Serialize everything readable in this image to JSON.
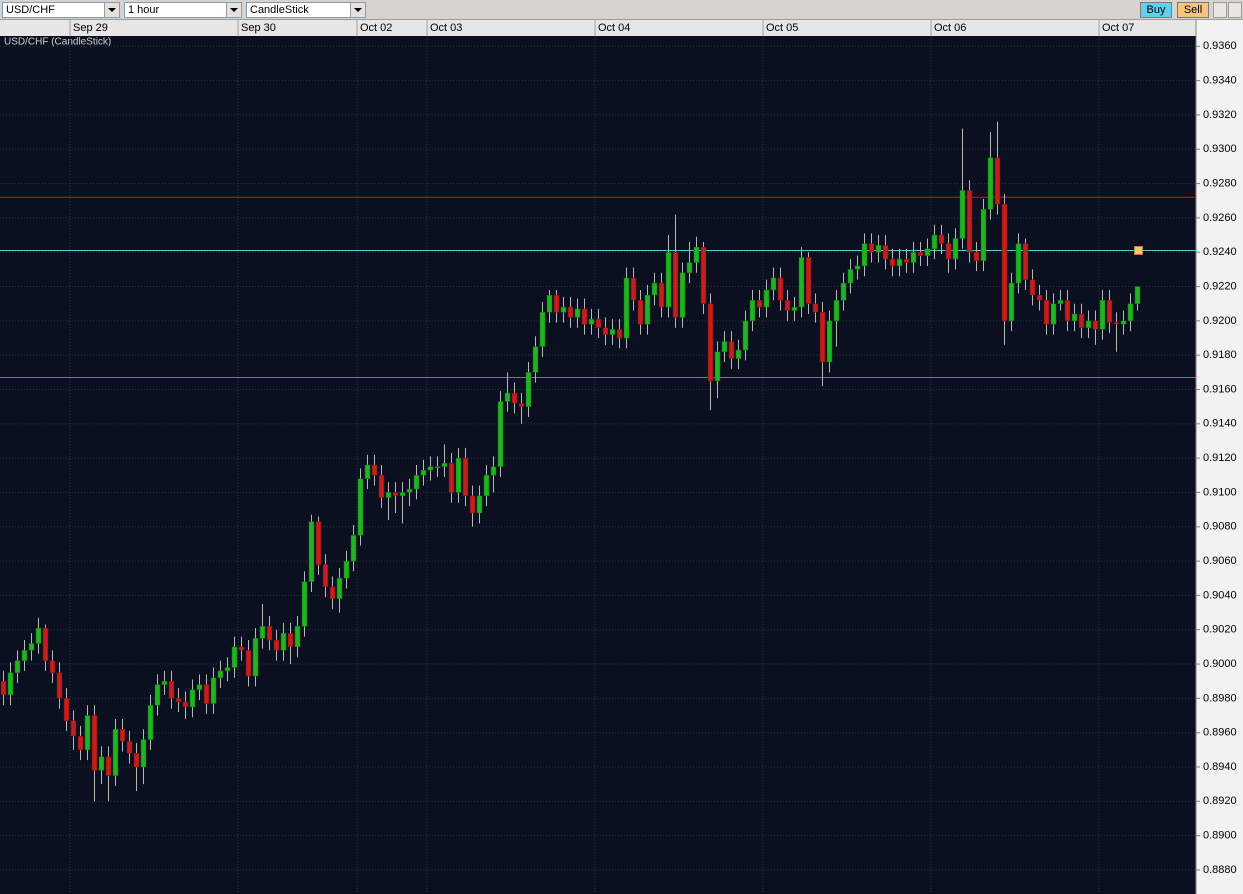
{
  "toolbar": {
    "symbol": "USD/CHF",
    "interval": "1 hour",
    "chart_style": "CandleStick",
    "buy": "Buy",
    "sell": "Sell"
  },
  "chart_data": {
    "type": "candlestick",
    "title": "USD/CHF (CandleStick)",
    "up_color": "#22b322",
    "down_color": "#c41e1e",
    "wick_color": "#b8b8b8",
    "grid": true,
    "ylim": [
      0.8866,
      0.9366
    ],
    "yticks": [
      {
        "value": 0.888,
        "label": "0.8880"
      },
      {
        "value": 0.89,
        "label": "0.8900"
      },
      {
        "value": 0.892,
        "label": "0.8920"
      },
      {
        "value": 0.894,
        "label": "0.8940"
      },
      {
        "value": 0.896,
        "label": "0.8960"
      },
      {
        "value": 0.898,
        "label": "0.8980"
      },
      {
        "value": 0.9,
        "label": "0.9000"
      },
      {
        "value": 0.902,
        "label": "0.9020"
      },
      {
        "value": 0.904,
        "label": "0.9040"
      },
      {
        "value": 0.906,
        "label": "0.9060"
      },
      {
        "value": 0.908,
        "label": "0.9080"
      },
      {
        "value": 0.91,
        "label": "0.9100"
      },
      {
        "value": 0.912,
        "label": "0.9120"
      },
      {
        "value": 0.914,
        "label": "0.9140"
      },
      {
        "value": 0.916,
        "label": "0.9160"
      },
      {
        "value": 0.918,
        "label": "0.9180"
      },
      {
        "value": 0.92,
        "label": "0.9200"
      },
      {
        "value": 0.922,
        "label": "0.9220"
      },
      {
        "value": 0.924,
        "label": "0.9240"
      },
      {
        "value": 0.926,
        "label": "0.9260"
      },
      {
        "value": 0.928,
        "label": "0.9280"
      },
      {
        "value": 0.93,
        "label": "0.9300"
      },
      {
        "value": 0.932,
        "label": "0.9320"
      },
      {
        "value": 0.934,
        "label": "0.9340"
      },
      {
        "value": 0.936,
        "label": "0.9360"
      }
    ],
    "levels": [
      {
        "value": 0.9272,
        "color": "#c0201a"
      },
      {
        "value": 0.9241,
        "color": "#5fc8d8"
      },
      {
        "value": 0.9167,
        "color": "#1fb81f"
      }
    ],
    "categories": [
      null,
      null,
      null,
      null,
      null,
      null,
      null,
      null,
      null,
      null,
      "Sep 29",
      null,
      null,
      null,
      null,
      null,
      null,
      null,
      null,
      null,
      null,
      null,
      null,
      null,
      null,
      null,
      null,
      null,
      null,
      null,
      null,
      null,
      null,
      null,
      "Sep 30",
      null,
      null,
      null,
      null,
      null,
      null,
      null,
      null,
      null,
      null,
      null,
      null,
      null,
      null,
      null,
      null,
      "Oct 02",
      null,
      null,
      null,
      null,
      null,
      null,
      null,
      null,
      null,
      "Oct 03",
      null,
      null,
      null,
      null,
      null,
      null,
      null,
      null,
      null,
      null,
      null,
      null,
      null,
      null,
      null,
      null,
      null,
      null,
      null,
      null,
      null,
      null,
      null,
      "Oct 04",
      null,
      null,
      null,
      null,
      null,
      null,
      null,
      null,
      null,
      null,
      null,
      null,
      null,
      null,
      null,
      null,
      null,
      null,
      null,
      null,
      null,
      null,
      null,
      "Oct 05",
      null,
      null,
      null,
      null,
      null,
      null,
      null,
      null,
      null,
      null,
      null,
      null,
      null,
      null,
      null,
      null,
      null,
      null,
      null,
      null,
      null,
      null,
      null,
      "Oct 06",
      null,
      null,
      null,
      null,
      null,
      null,
      null,
      null,
      null,
      null,
      null,
      null,
      null,
      null,
      null,
      null,
      null,
      null,
      null,
      null,
      null,
      null,
      null,
      "Oct 07",
      null,
      null,
      null,
      null,
      null
    ],
    "ohlc": [
      [
        0.899,
        0.8996,
        0.8976,
        0.8982
      ],
      [
        0.8982,
        0.9001,
        0.8976,
        0.8995
      ],
      [
        0.8995,
        0.9008,
        0.8989,
        0.9002
      ],
      [
        0.9002,
        0.9014,
        0.8996,
        0.9008
      ],
      [
        0.9008,
        0.9018,
        0.9002,
        0.9012
      ],
      [
        0.9012,
        0.9027,
        0.9006,
        0.9021
      ],
      [
        0.9021,
        0.9023,
        0.8996,
        0.9002
      ],
      [
        0.9002,
        0.9008,
        0.8989,
        0.8995
      ],
      [
        0.8995,
        0.9001,
        0.8974,
        0.898
      ],
      [
        0.898,
        0.8986,
        0.8961,
        0.8967
      ],
      [
        0.8967,
        0.8973,
        0.895,
        0.8958
      ],
      [
        0.8958,
        0.8964,
        0.8944,
        0.895
      ],
      [
        0.895,
        0.8976,
        0.8944,
        0.897
      ],
      [
        0.897,
        0.8976,
        0.892,
        0.8938
      ],
      [
        0.8938,
        0.8952,
        0.893,
        0.8946
      ],
      [
        0.8946,
        0.8952,
        0.892,
        0.8935
      ],
      [
        0.8935,
        0.8968,
        0.8929,
        0.8962
      ],
      [
        0.8962,
        0.8968,
        0.8949,
        0.8955
      ],
      [
        0.8955,
        0.8961,
        0.8942,
        0.8948
      ],
      [
        0.8948,
        0.8954,
        0.8926,
        0.894
      ],
      [
        0.894,
        0.8962,
        0.893,
        0.8956
      ],
      [
        0.8956,
        0.8982,
        0.895,
        0.8976
      ],
      [
        0.8976,
        0.8994,
        0.897,
        0.8988
      ],
      [
        0.8988,
        0.8996,
        0.8982,
        0.899
      ],
      [
        0.899,
        0.8996,
        0.8974,
        0.898
      ],
      [
        0.898,
        0.8986,
        0.8972,
        0.8978
      ],
      [
        0.8978,
        0.8984,
        0.8968,
        0.8975
      ],
      [
        0.8975,
        0.8991,
        0.8969,
        0.8985
      ],
      [
        0.8985,
        0.8994,
        0.8979,
        0.8988
      ],
      [
        0.8988,
        0.8994,
        0.8971,
        0.8977
      ],
      [
        0.8977,
        0.8998,
        0.8971,
        0.8992
      ],
      [
        0.8992,
        0.9002,
        0.8986,
        0.8996
      ],
      [
        0.8996,
        0.9004,
        0.899,
        0.8998
      ],
      [
        0.8998,
        0.9016,
        0.8992,
        0.901
      ],
      [
        0.901,
        0.9016,
        0.9002,
        0.9008
      ],
      [
        0.9008,
        0.9014,
        0.8987,
        0.8993
      ],
      [
        0.8993,
        0.9021,
        0.8987,
        0.9015
      ],
      [
        0.9015,
        0.9035,
        0.9009,
        0.9022
      ],
      [
        0.9022,
        0.9028,
        0.9008,
        0.9014
      ],
      [
        0.9014,
        0.902,
        0.9002,
        0.9008
      ],
      [
        0.9008,
        0.9024,
        0.9002,
        0.9018
      ],
      [
        0.9018,
        0.9024,
        0.9,
        0.901
      ],
      [
        0.901,
        0.9028,
        0.9004,
        0.9022
      ],
      [
        0.9022,
        0.9054,
        0.9016,
        0.9048
      ],
      [
        0.9048,
        0.9087,
        0.9042,
        0.9083
      ],
      [
        0.9083,
        0.9086,
        0.9052,
        0.9058
      ],
      [
        0.9058,
        0.9064,
        0.9039,
        0.9045
      ],
      [
        0.9045,
        0.9051,
        0.9032,
        0.9038
      ],
      [
        0.9038,
        0.9056,
        0.903,
        0.905
      ],
      [
        0.905,
        0.9066,
        0.9044,
        0.906
      ],
      [
        0.906,
        0.9081,
        0.9054,
        0.9075
      ],
      [
        0.9075,
        0.9114,
        0.9069,
        0.9108
      ],
      [
        0.9108,
        0.9122,
        0.9102,
        0.9116
      ],
      [
        0.9116,
        0.9122,
        0.9104,
        0.911
      ],
      [
        0.911,
        0.9116,
        0.9091,
        0.9097
      ],
      [
        0.9097,
        0.9106,
        0.9084,
        0.91
      ],
      [
        0.91,
        0.9106,
        0.9088,
        0.9098
      ],
      [
        0.9098,
        0.9106,
        0.9082,
        0.91
      ],
      [
        0.91,
        0.9108,
        0.9092,
        0.9102
      ],
      [
        0.9102,
        0.9116,
        0.9096,
        0.911
      ],
      [
        0.911,
        0.9119,
        0.9104,
        0.9113
      ],
      [
        0.9113,
        0.9121,
        0.9107,
        0.9115
      ],
      [
        0.9115,
        0.9121,
        0.9109,
        0.9115
      ],
      [
        0.9115,
        0.9128,
        0.9109,
        0.9117
      ],
      [
        0.9117,
        0.9123,
        0.9094,
        0.91
      ],
      [
        0.91,
        0.9126,
        0.9094,
        0.912
      ],
      [
        0.912,
        0.9126,
        0.9092,
        0.9098
      ],
      [
        0.9098,
        0.9104,
        0.908,
        0.9088
      ],
      [
        0.9088,
        0.9104,
        0.9082,
        0.9098
      ],
      [
        0.9098,
        0.9116,
        0.9092,
        0.911
      ],
      [
        0.911,
        0.9121,
        0.91,
        0.9115
      ],
      [
        0.9115,
        0.9159,
        0.9109,
        0.9153
      ],
      [
        0.9153,
        0.917,
        0.9147,
        0.9158
      ],
      [
        0.9158,
        0.9164,
        0.9146,
        0.9152
      ],
      [
        0.9152,
        0.9158,
        0.914,
        0.915
      ],
      [
        0.915,
        0.9176,
        0.9144,
        0.917
      ],
      [
        0.917,
        0.9191,
        0.9164,
        0.9185
      ],
      [
        0.9185,
        0.9211,
        0.9179,
        0.9205
      ],
      [
        0.9205,
        0.9218,
        0.9199,
        0.9215
      ],
      [
        0.9215,
        0.9218,
        0.9199,
        0.9205
      ],
      [
        0.9205,
        0.9214,
        0.9199,
        0.9208
      ],
      [
        0.9208,
        0.9214,
        0.9196,
        0.9202
      ],
      [
        0.9202,
        0.9213,
        0.9196,
        0.9207
      ],
      [
        0.9207,
        0.9213,
        0.9192,
        0.9198
      ],
      [
        0.9198,
        0.9207,
        0.9192,
        0.9201
      ],
      [
        0.9201,
        0.9207,
        0.919,
        0.9196
      ],
      [
        0.9196,
        0.9202,
        0.9186,
        0.9192
      ],
      [
        0.9192,
        0.9201,
        0.9186,
        0.9195
      ],
      [
        0.9195,
        0.9201,
        0.9184,
        0.919
      ],
      [
        0.919,
        0.9231,
        0.9184,
        0.9225
      ],
      [
        0.9225,
        0.9231,
        0.9206,
        0.9212
      ],
      [
        0.9212,
        0.9218,
        0.9192,
        0.9198
      ],
      [
        0.9198,
        0.9221,
        0.9192,
        0.9215
      ],
      [
        0.9215,
        0.9228,
        0.9209,
        0.9222
      ],
      [
        0.9222,
        0.9228,
        0.9202,
        0.9208
      ],
      [
        0.9208,
        0.925,
        0.9202,
        0.924
      ],
      [
        0.924,
        0.9262,
        0.9196,
        0.9202
      ],
      [
        0.9202,
        0.9234,
        0.9196,
        0.9228
      ],
      [
        0.9228,
        0.9246,
        0.9222,
        0.9234
      ],
      [
        0.9234,
        0.9249,
        0.9228,
        0.9243
      ],
      [
        0.9243,
        0.9246,
        0.9204,
        0.921
      ],
      [
        0.921,
        0.9216,
        0.9148,
        0.9165
      ],
      [
        0.9165,
        0.9188,
        0.9155,
        0.9182
      ],
      [
        0.9182,
        0.9194,
        0.9176,
        0.9188
      ],
      [
        0.9188,
        0.9194,
        0.9172,
        0.9178
      ],
      [
        0.9178,
        0.9189,
        0.9172,
        0.9183
      ],
      [
        0.9183,
        0.9206,
        0.9177,
        0.92
      ],
      [
        0.92,
        0.9218,
        0.9194,
        0.9212
      ],
      [
        0.9212,
        0.9218,
        0.9202,
        0.9208
      ],
      [
        0.9208,
        0.9224,
        0.9202,
        0.9218
      ],
      [
        0.9218,
        0.9231,
        0.9212,
        0.9225
      ],
      [
        0.9225,
        0.9231,
        0.9206,
        0.9212
      ],
      [
        0.9212,
        0.9218,
        0.92,
        0.9206
      ],
      [
        0.9206,
        0.9214,
        0.92,
        0.9208
      ],
      [
        0.9208,
        0.9243,
        0.9202,
        0.9237
      ],
      [
        0.9237,
        0.924,
        0.9204,
        0.921
      ],
      [
        0.921,
        0.9216,
        0.9199,
        0.9205
      ],
      [
        0.9205,
        0.9211,
        0.9162,
        0.9176
      ],
      [
        0.9176,
        0.9206,
        0.917,
        0.92
      ],
      [
        0.92,
        0.9218,
        0.9185,
        0.9212
      ],
      [
        0.9212,
        0.9228,
        0.9206,
        0.9222
      ],
      [
        0.9222,
        0.9236,
        0.9216,
        0.923
      ],
      [
        0.923,
        0.9238,
        0.9224,
        0.9232
      ],
      [
        0.9232,
        0.9251,
        0.9226,
        0.9245
      ],
      [
        0.9245,
        0.9251,
        0.9234,
        0.924
      ],
      [
        0.924,
        0.925,
        0.9234,
        0.9244
      ],
      [
        0.9244,
        0.925,
        0.923,
        0.9236
      ],
      [
        0.9236,
        0.9242,
        0.9226,
        0.9232
      ],
      [
        0.9232,
        0.9242,
        0.9226,
        0.9236
      ],
      [
        0.9236,
        0.9242,
        0.9228,
        0.9234
      ],
      [
        0.9234,
        0.9246,
        0.9228,
        0.924
      ],
      [
        0.924,
        0.9246,
        0.9232,
        0.9238
      ],
      [
        0.9238,
        0.9248,
        0.9232,
        0.9242
      ],
      [
        0.9242,
        0.9256,
        0.9236,
        0.925
      ],
      [
        0.925,
        0.9256,
        0.9239,
        0.9245
      ],
      [
        0.9245,
        0.9251,
        0.9228,
        0.9236
      ],
      [
        0.9236,
        0.9254,
        0.923,
        0.9248
      ],
      [
        0.9248,
        0.9312,
        0.9242,
        0.9276
      ],
      [
        0.9276,
        0.9282,
        0.9234,
        0.924
      ],
      [
        0.924,
        0.9246,
        0.9229,
        0.9235
      ],
      [
        0.9235,
        0.9271,
        0.9229,
        0.9265
      ],
      [
        0.9265,
        0.931,
        0.9259,
        0.9295
      ],
      [
        0.9295,
        0.9316,
        0.9262,
        0.9268
      ],
      [
        0.9268,
        0.9274,
        0.9186,
        0.92
      ],
      [
        0.92,
        0.9228,
        0.9194,
        0.9222
      ],
      [
        0.9222,
        0.9251,
        0.9216,
        0.9245
      ],
      [
        0.9245,
        0.9248,
        0.9218,
        0.9224
      ],
      [
        0.9224,
        0.923,
        0.9209,
        0.9215
      ],
      [
        0.9215,
        0.9221,
        0.9206,
        0.9212
      ],
      [
        0.9212,
        0.9218,
        0.9192,
        0.9198
      ],
      [
        0.9198,
        0.9216,
        0.9192,
        0.921
      ],
      [
        0.921,
        0.9218,
        0.9206,
        0.9212
      ],
      [
        0.9212,
        0.9218,
        0.9194,
        0.92
      ],
      [
        0.92,
        0.921,
        0.9194,
        0.9204
      ],
      [
        0.9204,
        0.921,
        0.919,
        0.9196
      ],
      [
        0.9196,
        0.9206,
        0.919,
        0.92
      ],
      [
        0.92,
        0.9206,
        0.9186,
        0.9195
      ],
      [
        0.9195,
        0.9218,
        0.9189,
        0.9212
      ],
      [
        0.9212,
        0.9218,
        0.9193,
        0.9199
      ],
      [
        0.9199,
        0.9205,
        0.9182,
        0.9198
      ],
      [
        0.9198,
        0.9206,
        0.9192,
        0.92
      ],
      [
        0.92,
        0.9216,
        0.9194,
        0.921
      ],
      [
        0.921,
        0.922,
        0.9206,
        0.922
      ]
    ]
  }
}
